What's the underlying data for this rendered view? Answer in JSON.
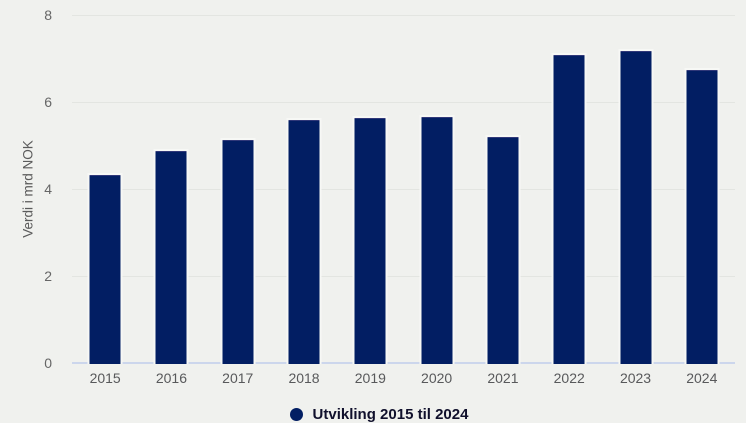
{
  "chart_data": {
    "type": "bar",
    "title": "",
    "ylabel": "Verdi i mrd NOK",
    "xlabel": "",
    "categories": [
      "2015",
      "2016",
      "2017",
      "2018",
      "2019",
      "2020",
      "2021",
      "2022",
      "2023",
      "2024"
    ],
    "values": [
      4.35,
      4.9,
      5.15,
      5.62,
      5.65,
      5.67,
      5.22,
      7.1,
      7.2,
      6.77
    ],
    "ylim": [
      0,
      8
    ],
    "yticks": [
      0,
      2,
      4,
      6,
      8
    ],
    "grid": true,
    "legend_position": "bottom-center",
    "legend_label": "Utvikling 2015 til 2024",
    "colors": {
      "bar": "#021e63",
      "bar_stroke": "#f7f8f5",
      "background": "#f0f1ee",
      "gridline": "#e3e5e1",
      "baseline": "#ccd6ec",
      "tick_text": "#666666",
      "axis_title_text": "#5b5b5b",
      "legend_text": "#10102c"
    }
  }
}
